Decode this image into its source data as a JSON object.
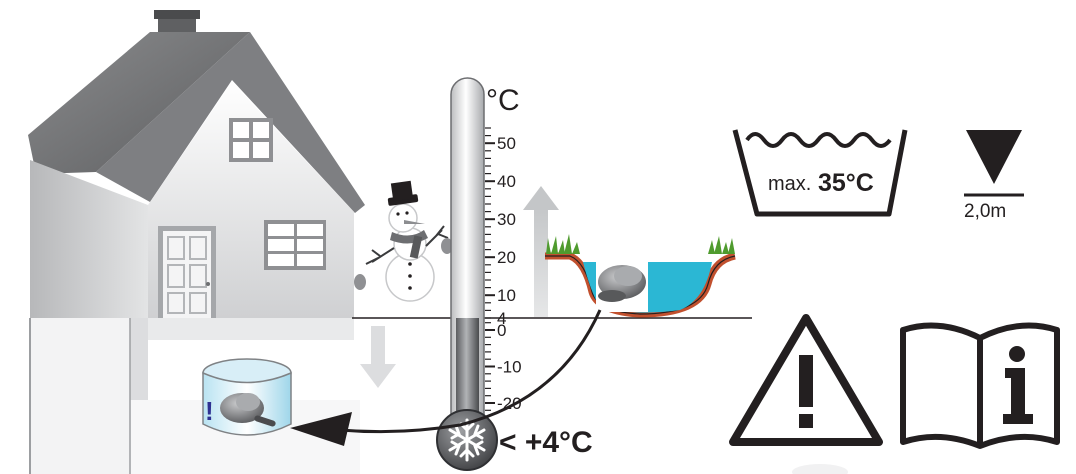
{
  "thermometer": {
    "unit": "°C",
    "ticks": [
      "50",
      "40",
      "30",
      "20",
      "10",
      "4",
      "0",
      "-10",
      "-20"
    ],
    "threshold_label": "< +4°C"
  },
  "washing_symbol": {
    "prefix": "max.",
    "value": "35°C"
  },
  "depth_symbol": {
    "label": "2,0m"
  },
  "icons": [
    "house-icon",
    "snowman-icon",
    "thermometer-icon",
    "snowflake-icon",
    "pond-icon",
    "pump-icon",
    "tub-icon",
    "wash-max-temperature-icon",
    "max-depth-icon",
    "warning-icon",
    "manual-info-icon"
  ],
  "colors": {
    "water": "#2bb7d4",
    "soil": "#c1502e",
    "grass": "#4f9b2e",
    "outline": "#231f20",
    "roof": "#6d6e71",
    "wall": "#d9d9d9"
  }
}
